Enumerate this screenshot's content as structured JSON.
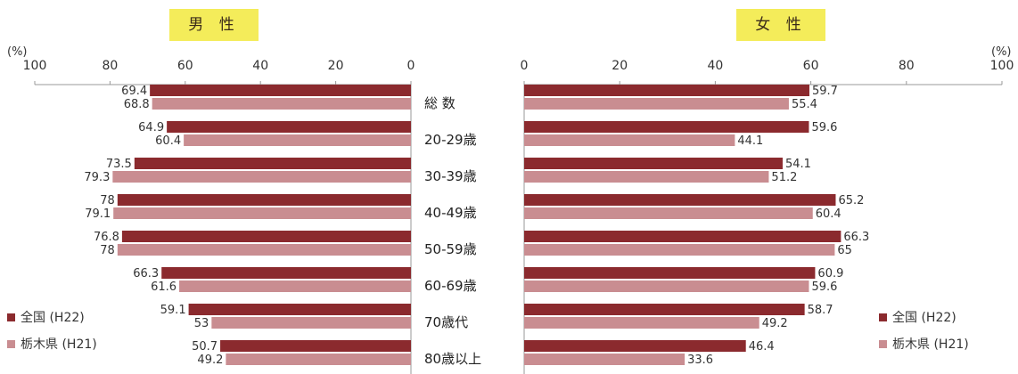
{
  "chart_data": [
    {
      "type": "bar",
      "orientation": "horizontal",
      "title": "男 性",
      "unit": "(%)",
      "xlim": [
        0,
        100
      ],
      "ticks": [
        100,
        80,
        60,
        40,
        20,
        0
      ],
      "direction": "right-to-left",
      "categories": [
        "総 数",
        "20-29歳",
        "30-39歳",
        "40-49歳",
        "50-59歳",
        "60-69歳",
        "70歳代",
        "80歳以上"
      ],
      "series": [
        {
          "name": "全国 (H22)",
          "values": [
            69.4,
            64.9,
            73.5,
            78,
            76.8,
            66.3,
            59.1,
            50.7
          ]
        },
        {
          "name": "栃木県 (H21)",
          "values": [
            68.8,
            60.4,
            79.3,
            79.1,
            78,
            61.6,
            53,
            49.2
          ]
        }
      ],
      "legend_position": "bottom-left"
    },
    {
      "type": "bar",
      "orientation": "horizontal",
      "title": "女 性",
      "unit": "(%)",
      "xlim": [
        0,
        100
      ],
      "ticks": [
        0,
        20,
        40,
        60,
        80,
        100
      ],
      "direction": "left-to-right",
      "categories": [
        "総 数",
        "20-29歳",
        "30-39歳",
        "40-49歳",
        "50-59歳",
        "60-69歳",
        "70歳代",
        "80歳以上"
      ],
      "series": [
        {
          "name": "全国 (H22)",
          "values": [
            59.7,
            59.6,
            54.1,
            65.2,
            66.3,
            60.9,
            58.7,
            46.4
          ]
        },
        {
          "name": "栃木県 (H21)",
          "values": [
            55.4,
            44.1,
            51.2,
            60.4,
            65,
            59.6,
            49.2,
            33.6
          ]
        }
      ],
      "legend_position": "bottom-right"
    }
  ],
  "colors": {
    "national": "#8b2a2e",
    "tochigi": "#c98d91",
    "label_bg": "#f4ec5a",
    "axis": "#999999"
  }
}
